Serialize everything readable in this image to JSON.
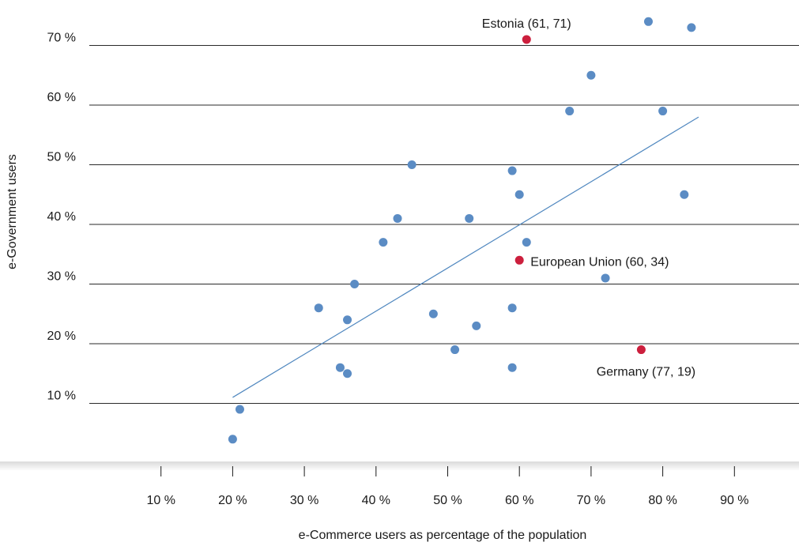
{
  "chart_data": {
    "type": "scatter",
    "title": "",
    "xlabel": "e-Commerce users as percentage of the population",
    "ylabel": "e-Government users",
    "xlim": [
      0,
      99
    ],
    "ylim": [
      -7,
      74
    ],
    "grid": "horizontal",
    "x_ticks": [
      {
        "value": 10,
        "label": "10 %"
      },
      {
        "value": 20,
        "label": "20 %"
      },
      {
        "value": 30,
        "label": "30 %"
      },
      {
        "value": 40,
        "label": "40 %"
      },
      {
        "value": 50,
        "label": "50 %"
      },
      {
        "value": 60,
        "label": "60 %"
      },
      {
        "value": 70,
        "label": "70 %"
      },
      {
        "value": 80,
        "label": "80 %"
      },
      {
        "value": 90,
        "label": "90 %"
      }
    ],
    "y_ticks": [
      {
        "value": 10,
        "label": "10 %"
      },
      {
        "value": 20,
        "label": "20 %"
      },
      {
        "value": 30,
        "label": "30 %"
      },
      {
        "value": 40,
        "label": "40 %"
      },
      {
        "value": 50,
        "label": "50 %"
      },
      {
        "value": 60,
        "label": "60 %"
      },
      {
        "value": 70,
        "label": "70 %"
      }
    ],
    "points": [
      {
        "x": 20,
        "y": 4
      },
      {
        "x": 21,
        "y": 9
      },
      {
        "x": 32,
        "y": 26
      },
      {
        "x": 35,
        "y": 16
      },
      {
        "x": 36,
        "y": 15
      },
      {
        "x": 36,
        "y": 24
      },
      {
        "x": 37,
        "y": 30
      },
      {
        "x": 41,
        "y": 37
      },
      {
        "x": 43,
        "y": 41
      },
      {
        "x": 45,
        "y": 50
      },
      {
        "x": 48,
        "y": 25
      },
      {
        "x": 51,
        "y": 19
      },
      {
        "x": 53,
        "y": 41
      },
      {
        "x": 54,
        "y": 23
      },
      {
        "x": 59,
        "y": 49
      },
      {
        "x": 59,
        "y": 26
      },
      {
        "x": 59,
        "y": 16
      },
      {
        "x": 60,
        "y": 45
      },
      {
        "x": 61,
        "y": 37
      },
      {
        "x": 67,
        "y": 59
      },
      {
        "x": 70,
        "y": 65
      },
      {
        "x": 72,
        "y": 31
      },
      {
        "x": 78,
        "y": 74
      },
      {
        "x": 80,
        "y": 59
      },
      {
        "x": 83,
        "y": 45
      },
      {
        "x": 84,
        "y": 73
      }
    ],
    "highlighted": [
      {
        "x": 61,
        "y": 71,
        "label": "Estonia (61, 71)",
        "label_side": "above"
      },
      {
        "x": 60,
        "y": 34,
        "label": "European Union (60, 34)",
        "label_side": "right"
      },
      {
        "x": 77,
        "y": 19,
        "label": "Germany (77, 19)",
        "label_side": "below"
      }
    ],
    "trendline": {
      "x1": 20,
      "y1": 11,
      "x2": 85,
      "y2": 58
    },
    "colors": {
      "point": "#5b8cc4",
      "highlight": "#cc1f3d",
      "trend": "#4f87bf",
      "grid": "#2a2a2a"
    }
  }
}
